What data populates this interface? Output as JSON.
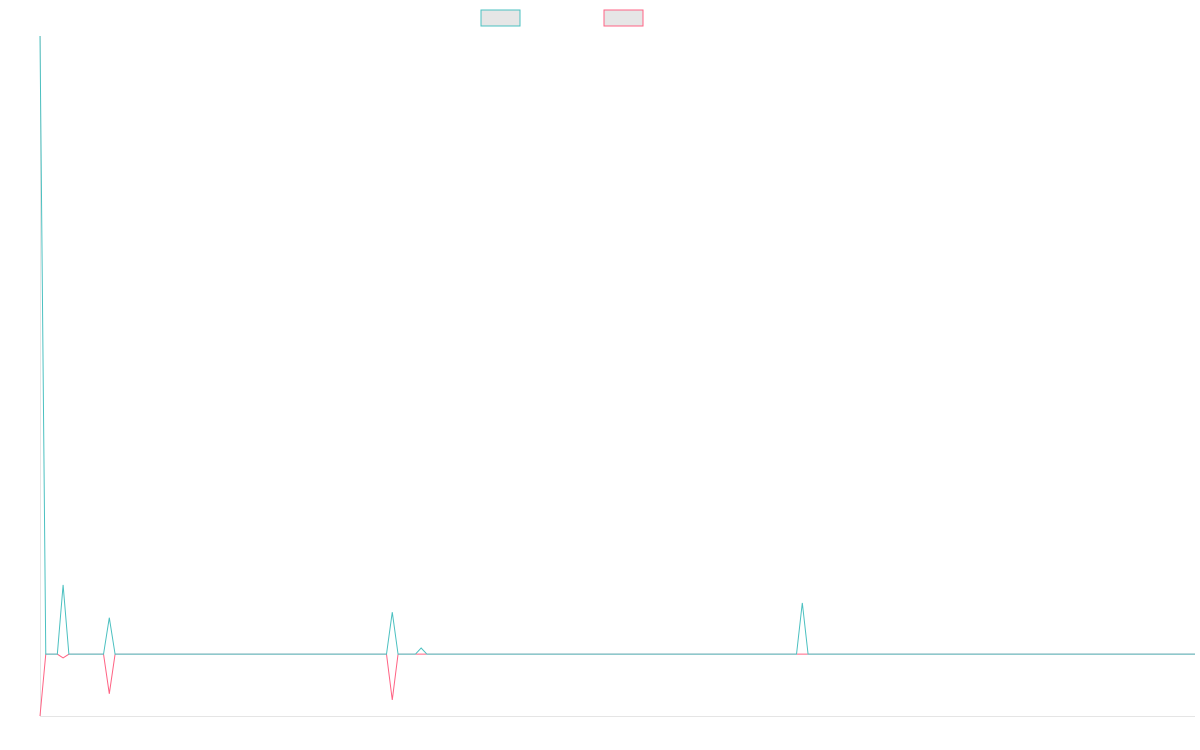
{
  "chart_data": {
    "type": "line",
    "x": [
      0,
      1,
      3,
      4,
      5,
      11,
      12,
      13,
      60,
      61,
      62,
      65,
      66,
      67,
      131,
      132,
      133,
      200
    ],
    "xlim": [
      0,
      200
    ],
    "ylim": [
      -10,
      100
    ],
    "series": [
      {
        "color": "#ff6384",
        "values": [
          -10,
          0,
          0,
          -0.6,
          0,
          0,
          -6.4,
          0,
          0,
          -7.4,
          0,
          0,
          0,
          0,
          0,
          0,
          0,
          0
        ]
      },
      {
        "color": "#4bc0c0",
        "values": [
          100,
          0,
          0,
          11.2,
          0,
          0,
          5.9,
          0,
          0,
          6.8,
          0,
          0,
          1,
          0,
          0,
          8.3,
          0,
          0
        ]
      }
    ]
  }
}
